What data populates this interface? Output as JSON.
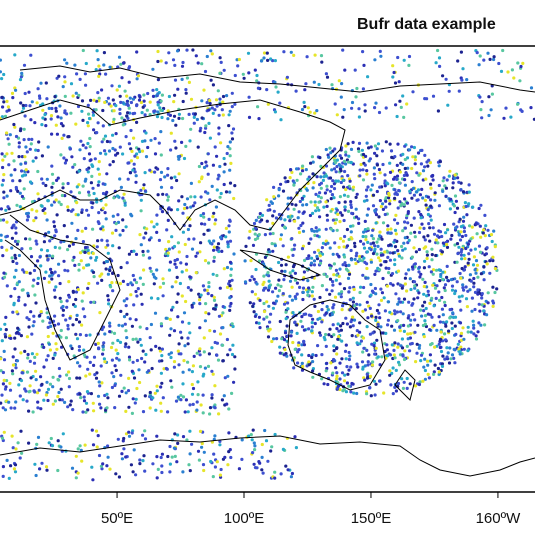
{
  "map": {
    "title": "Bufr data example",
    "xlim": [
      3.9,
      214.6
    ],
    "xticks": [
      {
        "value": 50,
        "label": "50ºE"
      },
      {
        "value": 100,
        "label": "100ºE"
      },
      {
        "value": 150,
        "label": "150ºE"
      },
      {
        "value": 200,
        "label": "160ºW"
      }
    ]
  }
}
